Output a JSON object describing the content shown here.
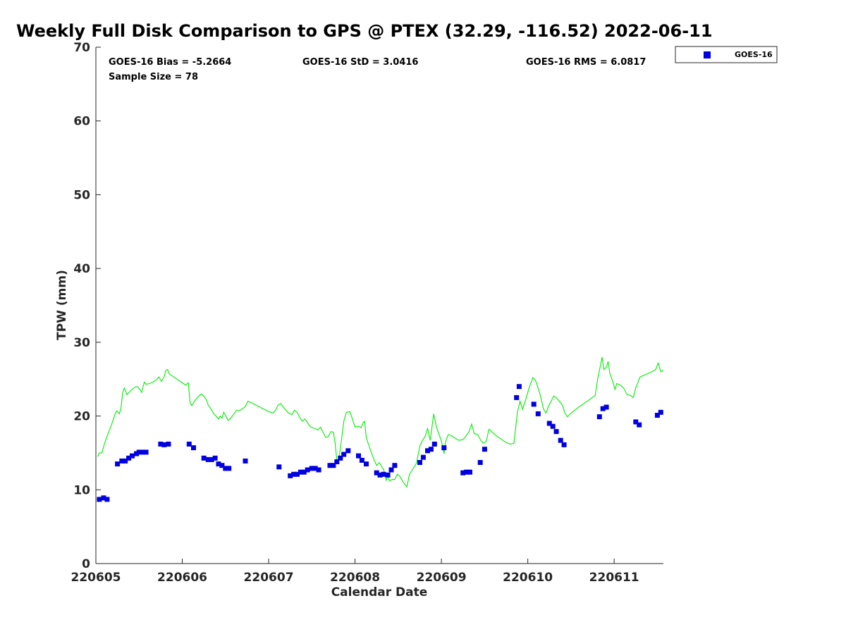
{
  "chart_data": {
    "type": "scatter",
    "title": "Weekly Full Disk Comparison to GPS @ PTEX (32.29, -116.52) 2022-06-11",
    "xlabel": "Calendar Date",
    "ylabel": "TPW (mm)",
    "xlim": [
      220605,
      220611.57
    ],
    "ylim": [
      0,
      70
    ],
    "x_ticks": [
      "220605",
      "220606",
      "220607",
      "220608",
      "220609",
      "220610",
      "220611"
    ],
    "y_ticks": [
      0,
      10,
      20,
      30,
      40,
      50,
      60,
      70
    ],
    "grid": false,
    "legend_position": "top-right",
    "stats": {
      "bias": "GOES-16 Bias = -5.2664",
      "std": "GOES-16 StD = 3.0416",
      "rms": "GOES-16 RMS = 6.0817",
      "sample": "Sample Size = 78"
    },
    "colors": {
      "series": "#0000e0",
      "reference": "#00ee00",
      "axis": "#262626"
    },
    "series": [
      {
        "name": "GOES-16",
        "marker": "square",
        "points": [
          [
            220605.04,
            8.7
          ],
          [
            220605.09,
            8.9
          ],
          [
            220605.13,
            8.7
          ],
          [
            220605.25,
            13.5
          ],
          [
            220605.3,
            13.9
          ],
          [
            220605.34,
            13.9
          ],
          [
            220605.38,
            14.3
          ],
          [
            220605.42,
            14.6
          ],
          [
            220605.47,
            14.9
          ],
          [
            220605.5,
            15.1
          ],
          [
            220605.54,
            15.1
          ],
          [
            220605.58,
            15.1
          ],
          [
            220605.75,
            16.2
          ],
          [
            220605.79,
            16.1
          ],
          [
            220605.84,
            16.2
          ],
          [
            220606.08,
            16.2
          ],
          [
            220606.13,
            15.7
          ],
          [
            220606.25,
            14.3
          ],
          [
            220606.3,
            14.1
          ],
          [
            220606.34,
            14.1
          ],
          [
            220606.38,
            14.3
          ],
          [
            220606.42,
            13.5
          ],
          [
            220606.46,
            13.3
          ],
          [
            220606.5,
            12.9
          ],
          [
            220606.54,
            12.9
          ],
          [
            220606.73,
            13.9
          ],
          [
            220607.12,
            13.1
          ],
          [
            220607.25,
            11.9
          ],
          [
            220607.29,
            12.1
          ],
          [
            220607.33,
            12.1
          ],
          [
            220607.37,
            12.4
          ],
          [
            220607.41,
            12.4
          ],
          [
            220607.45,
            12.7
          ],
          [
            220607.5,
            12.9
          ],
          [
            220607.54,
            12.9
          ],
          [
            220607.58,
            12.7
          ],
          [
            220607.71,
            13.3
          ],
          [
            220607.75,
            13.3
          ],
          [
            220607.79,
            13.8
          ],
          [
            220607.83,
            14.3
          ],
          [
            220607.87,
            14.8
          ],
          [
            220607.92,
            15.3
          ],
          [
            220608.04,
            14.6
          ],
          [
            220608.08,
            14.0
          ],
          [
            220608.13,
            13.5
          ],
          [
            220608.25,
            12.3
          ],
          [
            220608.29,
            12.0
          ],
          [
            220608.33,
            12.1
          ],
          [
            220608.38,
            12.0
          ],
          [
            220608.42,
            12.7
          ],
          [
            220608.46,
            13.3
          ],
          [
            220608.75,
            13.7
          ],
          [
            220608.79,
            14.4
          ],
          [
            220608.84,
            15.3
          ],
          [
            220608.88,
            15.5
          ],
          [
            220608.92,
            16.2
          ],
          [
            220609.03,
            15.7
          ],
          [
            220609.25,
            12.3
          ],
          [
            220609.29,
            12.4
          ],
          [
            220609.33,
            12.4
          ],
          [
            220609.45,
            13.7
          ],
          [
            220609.5,
            15.5
          ],
          [
            220609.87,
            22.5
          ],
          [
            220609.9,
            24.0
          ],
          [
            220610.07,
            21.6
          ],
          [
            220610.12,
            20.3
          ],
          [
            220610.25,
            19.0
          ],
          [
            220610.29,
            18.6
          ],
          [
            220610.33,
            17.9
          ],
          [
            220610.38,
            16.7
          ],
          [
            220610.42,
            16.1
          ],
          [
            220610.83,
            19.9
          ],
          [
            220610.87,
            21.0
          ],
          [
            220610.91,
            21.2
          ],
          [
            220611.25,
            19.2
          ],
          [
            220611.29,
            18.8
          ],
          [
            220611.5,
            20.1
          ],
          [
            220611.54,
            20.5
          ]
        ]
      },
      {
        "role": "reference",
        "style": "line",
        "points": [
          [
            220605.02,
            14.5
          ],
          [
            220605.04,
            15.0
          ],
          [
            220605.07,
            15.0
          ],
          [
            220605.1,
            16.3
          ],
          [
            220605.14,
            17.6
          ],
          [
            220605.18,
            18.8
          ],
          [
            220605.22,
            20.2
          ],
          [
            220605.24,
            20.7
          ],
          [
            220605.27,
            20.3
          ],
          [
            220605.29,
            21.0
          ],
          [
            220605.31,
            23.2
          ],
          [
            220605.33,
            23.8
          ],
          [
            220605.36,
            22.9
          ],
          [
            220605.39,
            23.3
          ],
          [
            220605.42,
            23.6
          ],
          [
            220605.45,
            23.9
          ],
          [
            220605.48,
            24.0
          ],
          [
            220605.51,
            23.6
          ],
          [
            220605.53,
            23.2
          ],
          [
            220605.56,
            24.6
          ],
          [
            220605.58,
            24.3
          ],
          [
            220605.62,
            24.4
          ],
          [
            220605.66,
            24.6
          ],
          [
            220605.7,
            24.9
          ],
          [
            220605.73,
            25.3
          ],
          [
            220605.76,
            24.7
          ],
          [
            220605.79,
            25.3
          ],
          [
            220605.81,
            26.2
          ],
          [
            220605.83,
            26.3
          ],
          [
            220605.85,
            25.7
          ],
          [
            220605.9,
            25.3
          ],
          [
            220605.95,
            24.9
          ],
          [
            220606.0,
            24.5
          ],
          [
            220606.04,
            24.2
          ],
          [
            220606.07,
            24.5
          ],
          [
            220606.09,
            21.8
          ],
          [
            220606.11,
            21.4
          ],
          [
            220606.13,
            21.8
          ],
          [
            220606.16,
            22.3
          ],
          [
            220606.19,
            22.7
          ],
          [
            220606.22,
            23.0
          ],
          [
            220606.25,
            22.7
          ],
          [
            220606.28,
            22.2
          ],
          [
            220606.3,
            21.5
          ],
          [
            220606.33,
            21.0
          ],
          [
            220606.36,
            20.4
          ],
          [
            220606.39,
            20.0
          ],
          [
            220606.42,
            19.6
          ],
          [
            220606.44,
            20.0
          ],
          [
            220606.46,
            19.7
          ],
          [
            220606.48,
            20.5
          ],
          [
            220606.5,
            20.1
          ],
          [
            220606.53,
            19.4
          ],
          [
            220606.56,
            19.7
          ],
          [
            220606.6,
            20.3
          ],
          [
            220606.63,
            20.8
          ],
          [
            220606.66,
            20.7
          ],
          [
            220606.7,
            21.0
          ],
          [
            220606.73,
            21.3
          ],
          [
            220606.76,
            22.0
          ],
          [
            220606.8,
            21.8
          ],
          [
            220606.85,
            21.5
          ],
          [
            220606.9,
            21.2
          ],
          [
            220606.95,
            20.9
          ],
          [
            220607.0,
            20.6
          ],
          [
            220607.05,
            20.4
          ],
          [
            220607.08,
            20.8
          ],
          [
            220607.11,
            21.5
          ],
          [
            220607.14,
            21.7
          ],
          [
            220607.17,
            21.2
          ],
          [
            220607.2,
            20.8
          ],
          [
            220607.23,
            20.4
          ],
          [
            220607.27,
            20.2
          ],
          [
            220607.3,
            20.8
          ],
          [
            220607.33,
            20.5
          ],
          [
            220607.36,
            19.8
          ],
          [
            220607.39,
            19.3
          ],
          [
            220607.42,
            19.6
          ],
          [
            220607.45,
            19.1
          ],
          [
            220607.48,
            18.6
          ],
          [
            220607.51,
            18.4
          ],
          [
            220607.54,
            18.3
          ],
          [
            220607.57,
            18.1
          ],
          [
            220607.6,
            18.5
          ],
          [
            220607.63,
            17.8
          ],
          [
            220607.66,
            17.1
          ],
          [
            220607.69,
            17.2
          ],
          [
            220607.72,
            17.9
          ],
          [
            220607.75,
            17.8
          ],
          [
            220607.77,
            16.3
          ],
          [
            220607.79,
            14.0
          ],
          [
            220607.81,
            13.8
          ],
          [
            220607.84,
            16.5
          ],
          [
            220607.87,
            19.3
          ],
          [
            220607.9,
            20.5
          ],
          [
            220607.94,
            20.6
          ],
          [
            220607.97,
            19.6
          ],
          [
            220608.0,
            18.5
          ],
          [
            220608.04,
            18.6
          ],
          [
            220608.07,
            18.4
          ],
          [
            220608.09,
            19.0
          ],
          [
            220608.11,
            19.3
          ],
          [
            220608.13,
            17.1
          ],
          [
            220608.16,
            16.0
          ],
          [
            220608.19,
            15.0
          ],
          [
            220608.22,
            14.1
          ],
          [
            220608.25,
            13.3
          ],
          [
            220608.28,
            13.7
          ],
          [
            220608.31,
            13.1
          ],
          [
            220608.33,
            12.8
          ],
          [
            220608.36,
            11.3
          ],
          [
            220608.38,
            11.8
          ],
          [
            220608.4,
            11.2
          ],
          [
            220608.43,
            11.4
          ],
          [
            220608.46,
            11.4
          ],
          [
            220608.49,
            12.1
          ],
          [
            220608.52,
            11.8
          ],
          [
            220608.56,
            11.0
          ],
          [
            220608.6,
            10.4
          ],
          [
            220608.63,
            12.1
          ],
          [
            220608.67,
            12.8
          ],
          [
            220608.71,
            13.6
          ],
          [
            220608.75,
            15.9
          ],
          [
            220608.78,
            16.7
          ],
          [
            220608.81,
            17.2
          ],
          [
            220608.84,
            18.3
          ],
          [
            220608.87,
            16.7
          ],
          [
            220608.89,
            18.4
          ],
          [
            220608.91,
            20.3
          ],
          [
            220608.94,
            18.6
          ],
          [
            220608.97,
            17.6
          ],
          [
            220609.0,
            16.6
          ],
          [
            220609.03,
            14.9
          ],
          [
            220609.05,
            16.6
          ],
          [
            220609.08,
            17.5
          ],
          [
            220609.12,
            17.3
          ],
          [
            220609.16,
            17.0
          ],
          [
            220609.2,
            16.7
          ],
          [
            220609.25,
            16.8
          ],
          [
            220609.28,
            17.2
          ],
          [
            220609.32,
            17.9
          ],
          [
            220609.35,
            18.9
          ],
          [
            220609.38,
            17.6
          ],
          [
            220609.42,
            17.5
          ],
          [
            220609.46,
            16.6
          ],
          [
            220609.49,
            16.3
          ],
          [
            220609.52,
            16.6
          ],
          [
            220609.55,
            18.2
          ],
          [
            220609.6,
            17.7
          ],
          [
            220609.65,
            17.2
          ],
          [
            220609.7,
            16.8
          ],
          [
            220609.75,
            16.4
          ],
          [
            220609.8,
            16.2
          ],
          [
            220609.84,
            16.3
          ],
          [
            220609.88,
            20.5
          ],
          [
            220609.91,
            22.0
          ],
          [
            220609.94,
            20.9
          ],
          [
            220609.98,
            22.4
          ],
          [
            220610.02,
            24.0
          ],
          [
            220610.06,
            25.2
          ],
          [
            220610.09,
            24.8
          ],
          [
            220610.12,
            23.8
          ],
          [
            220610.15,
            22.6
          ],
          [
            220610.18,
            21.0
          ],
          [
            220610.21,
            20.4
          ],
          [
            220610.24,
            21.3
          ],
          [
            220610.27,
            22.0
          ],
          [
            220610.3,
            22.7
          ],
          [
            220610.33,
            22.5
          ],
          [
            220610.36,
            22.1
          ],
          [
            220610.4,
            21.5
          ],
          [
            220610.43,
            20.4
          ],
          [
            220610.46,
            19.9
          ],
          [
            220610.5,
            20.4
          ],
          [
            220610.6,
            21.3
          ],
          [
            220610.7,
            22.1
          ],
          [
            220610.78,
            22.8
          ],
          [
            220610.81,
            25.1
          ],
          [
            220610.84,
            26.8
          ],
          [
            220610.86,
            28.0
          ],
          [
            220610.88,
            26.3
          ],
          [
            220610.91,
            26.6
          ],
          [
            220610.93,
            27.4
          ],
          [
            220610.95,
            25.8
          ],
          [
            220610.98,
            24.8
          ],
          [
            220611.01,
            23.6
          ],
          [
            220611.03,
            24.4
          ],
          [
            220611.07,
            24.2
          ],
          [
            220611.11,
            23.8
          ],
          [
            220611.15,
            22.9
          ],
          [
            220611.19,
            22.8
          ],
          [
            220611.22,
            22.5
          ],
          [
            220611.25,
            23.8
          ],
          [
            220611.3,
            25.3
          ],
          [
            220611.36,
            25.6
          ],
          [
            220611.42,
            25.9
          ],
          [
            220611.48,
            26.3
          ],
          [
            220611.51,
            27.2
          ],
          [
            220611.54,
            26.0
          ],
          [
            220611.57,
            26.2
          ]
        ]
      }
    ]
  }
}
